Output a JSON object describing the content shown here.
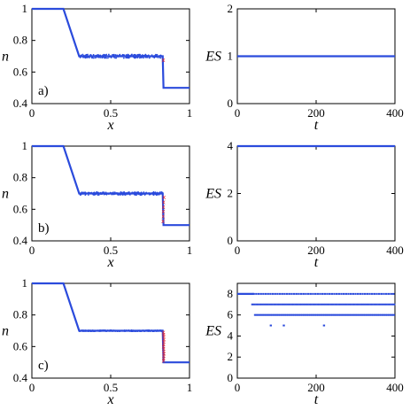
{
  "chart_data": [
    {
      "type": "line",
      "panel_label": "a)",
      "xlabel": "x",
      "ylabel": "n",
      "xlim": [
        0,
        1
      ],
      "ylim": [
        0.4,
        1
      ],
      "xticks": [
        "0",
        "0.5",
        "1"
      ],
      "yticks": [
        "0.4",
        "0.6",
        "0.8",
        "1"
      ],
      "colors": {
        "main": "#2b4bdc",
        "marker": "#e8202a"
      },
      "profile": [
        [
          0,
          1.0
        ],
        [
          0.2,
          1.0
        ],
        [
          0.3,
          0.7
        ],
        [
          0.83,
          0.7
        ],
        [
          0.835,
          0.5
        ],
        [
          1.0,
          0.5
        ]
      ],
      "plateau": {
        "x_start": 0.3,
        "x_end": 0.83,
        "y": 0.7,
        "noise": 0.012
      },
      "markers": [
        [
          0.835,
          0.68
        ]
      ],
      "markers_label": "x"
    },
    {
      "type": "line",
      "xlabel": "t",
      "ylabel": "ES",
      "xlim": [
        0,
        400
      ],
      "ylim": [
        0,
        2
      ],
      "xticks": [
        "0",
        "200",
        "400"
      ],
      "yticks": [
        "0",
        "1",
        "2"
      ],
      "colors": {
        "main": "#2b4bdc"
      },
      "segments": [
        {
          "t_start": 0,
          "t_end": 400,
          "value": 1
        }
      ]
    },
    {
      "type": "line",
      "panel_label": "b)",
      "xlabel": "x",
      "ylabel": "n",
      "xlim": [
        0,
        1
      ],
      "ylim": [
        0.4,
        1
      ],
      "xticks": [
        "0",
        "0.5",
        "1"
      ],
      "yticks": [
        "0.4",
        "0.6",
        "0.8",
        "1"
      ],
      "colors": {
        "main": "#2b4bdc",
        "marker": "#e8202a"
      },
      "profile": [
        [
          0,
          1.0
        ],
        [
          0.2,
          1.0
        ],
        [
          0.3,
          0.7
        ],
        [
          0.83,
          0.7
        ],
        [
          0.835,
          0.5
        ],
        [
          1.0,
          0.5
        ]
      ],
      "plateau": {
        "x_start": 0.3,
        "x_end": 0.83,
        "y": 0.7,
        "noise": 0.01
      },
      "markers": [
        [
          0.838,
          0.68
        ],
        [
          0.836,
          0.65
        ],
        [
          0.835,
          0.62
        ],
        [
          0.834,
          0.59
        ],
        [
          0.833,
          0.56
        ],
        [
          0.832,
          0.53
        ]
      ],
      "markers_label": "x"
    },
    {
      "type": "line",
      "xlabel": "t",
      "ylabel": "ES",
      "xlim": [
        0,
        400
      ],
      "ylim": [
        0,
        4
      ],
      "xticks": [
        "0",
        "200",
        "400"
      ],
      "yticks": [
        "0",
        "2",
        "4"
      ],
      "colors": {
        "main": "#2b4bdc"
      },
      "segments": [
        {
          "t_start": 0,
          "t_end": 400,
          "value": 4
        }
      ]
    },
    {
      "type": "line",
      "panel_label": "c)",
      "xlabel": "x",
      "ylabel": "n",
      "xlim": [
        0,
        1
      ],
      "ylim": [
        0.4,
        1
      ],
      "xticks": [
        "0",
        "0.5",
        "1"
      ],
      "yticks": [
        "0.4",
        "0.6",
        "0.8",
        "1"
      ],
      "colors": {
        "main": "#2b4bdc",
        "marker": "#e8202a"
      },
      "profile": [
        [
          0,
          1.0
        ],
        [
          0.2,
          1.0
        ],
        [
          0.3,
          0.7
        ],
        [
          0.83,
          0.7
        ],
        [
          0.835,
          0.5
        ],
        [
          1.0,
          0.5
        ]
      ],
      "plateau": {
        "x_start": 0.3,
        "x_end": 0.83,
        "y": 0.7,
        "noise": 0.004
      },
      "markers": [
        [
          0.835,
          0.695
        ],
        [
          0.836,
          0.68
        ],
        [
          0.837,
          0.665
        ],
        [
          0.838,
          0.65
        ],
        [
          0.837,
          0.635
        ],
        [
          0.836,
          0.62
        ],
        [
          0.835,
          0.605
        ],
        [
          0.836,
          0.59
        ],
        [
          0.837,
          0.575
        ],
        [
          0.838,
          0.56
        ],
        [
          0.837,
          0.545
        ],
        [
          0.836,
          0.53
        ],
        [
          0.835,
          0.515
        ]
      ],
      "markers_label": "x"
    },
    {
      "type": "scatter",
      "xlabel": "t",
      "ylabel": "ES",
      "xlim": [
        0,
        400
      ],
      "ylim": [
        0,
        9
      ],
      "xticks": [
        "0",
        "200",
        "400"
      ],
      "yticks": [
        "0",
        "2",
        "4",
        "6",
        "8"
      ],
      "colors": {
        "main": "#2b4bdc"
      },
      "solid_segment": {
        "t_start": 0,
        "t_end": 42,
        "value": 8
      },
      "dotted_segments": [
        {
          "t_start": 42,
          "t_end": 400,
          "value": 8,
          "step": 6
        },
        {
          "t_start": 38,
          "t_end": 400,
          "value": 7,
          "step": 5
        },
        {
          "t_start": 45,
          "t_end": 400,
          "value": 6,
          "step": 4
        }
      ],
      "isolated_points": [
        [
          85,
          5
        ],
        [
          118,
          5
        ],
        [
          220,
          5
        ]
      ]
    }
  ]
}
